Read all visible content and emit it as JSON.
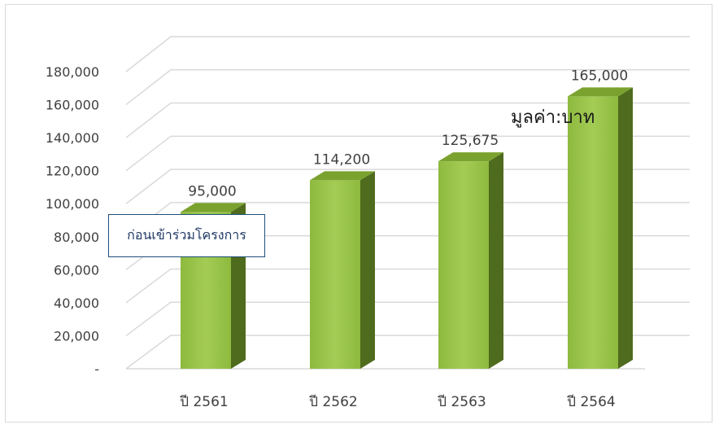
{
  "chart_data": {
    "type": "bar",
    "categories": [
      "ปี 2561",
      "ปี 2562",
      "ปี 2563",
      "ปี 2564"
    ],
    "values": [
      95000,
      114200,
      125675,
      165000
    ],
    "value_labels": [
      "95,000",
      "114,200",
      "125,675",
      "165,000"
    ],
    "ylim": [
      0,
      180000
    ],
    "y_ticks": [
      "-",
      "20,000",
      "40,000",
      "60,000",
      "80,000",
      "100,000",
      "120,000",
      "140,000",
      "160,000",
      "180,000"
    ],
    "unit_label": "มูลค่า:บาท",
    "annotation": "ก่อนเข้าร่วมโครงการ",
    "grid": true,
    "bar_colors": {
      "front": "#8dba3e",
      "front_light": "#a3cc55",
      "side": "#4f6b1e",
      "top": "#7aa22e"
    },
    "grid_color": "#d9d9d9"
  }
}
